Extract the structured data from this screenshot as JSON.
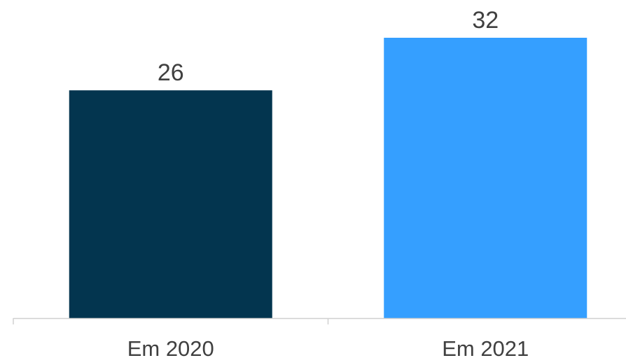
{
  "chart_data": {
    "type": "bar",
    "categories": [
      "Em 2020",
      "Em 2021"
    ],
    "values": [
      26,
      32
    ],
    "colors": [
      "#03354F",
      "#359FFF"
    ],
    "title": "",
    "xlabel": "",
    "ylabel": "",
    "ylim": [
      0,
      32
    ],
    "grid": false,
    "legend": "none",
    "data_labels": true
  }
}
